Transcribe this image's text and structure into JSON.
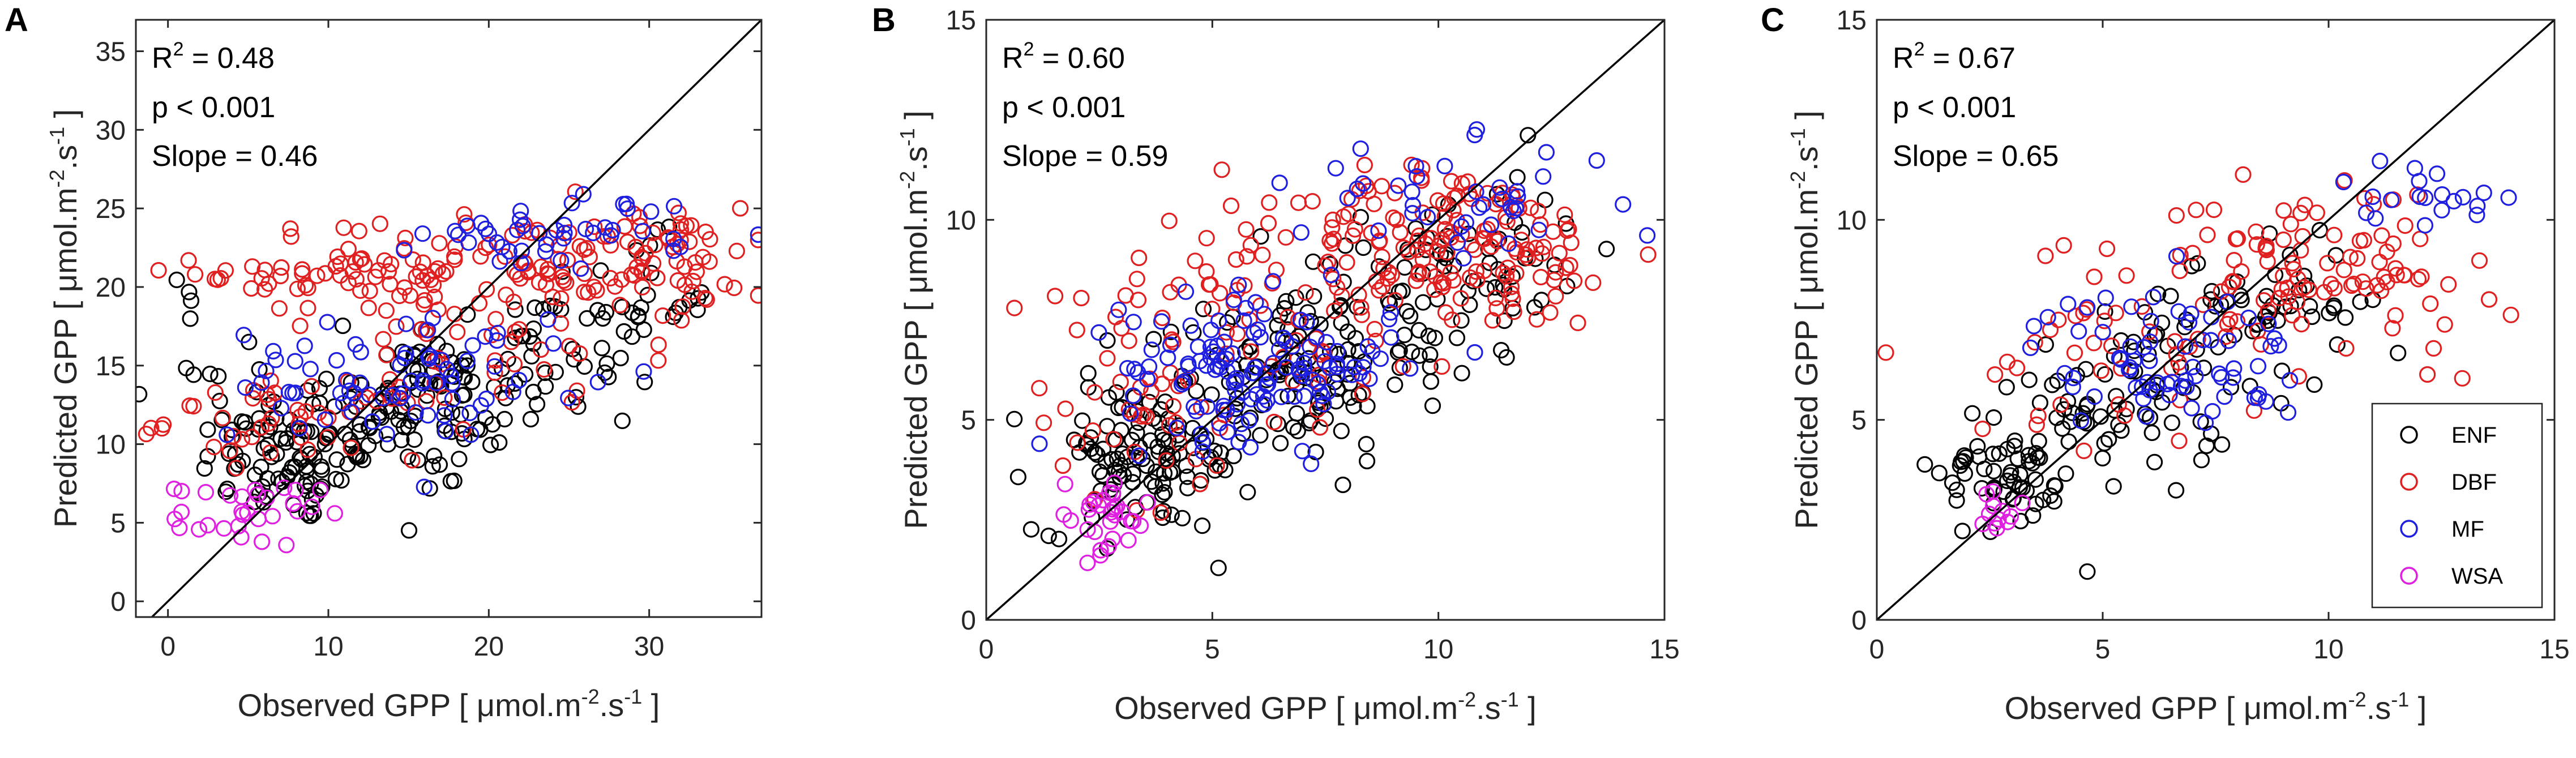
{
  "figure": {
    "legend": [
      {
        "label": "ENF",
        "color": "#000000"
      },
      {
        "label": "DBF",
        "color": "#e02020"
      },
      {
        "label": "MF",
        "color": "#1f1fe0"
      },
      {
        "label": "WSA",
        "color": "#e020e0"
      }
    ],
    "x_title": "Observed GPP [ μmol.m",
    "y_title": "Predicted GPP [ μmol.m",
    "unit_exp1": "-2",
    "unit_mid": ".s",
    "unit_exp2": "-1",
    "unit_end": "]"
  },
  "chart_data": [
    {
      "panel": "A",
      "type": "scatter",
      "xlim": [
        -2,
        37
      ],
      "ylim": [
        -1,
        37
      ],
      "xticks": [
        0,
        10,
        20,
        30
      ],
      "yticks": [
        0,
        5,
        10,
        15,
        20,
        25,
        30,
        35
      ],
      "stats": {
        "r2": "R",
        "r2_sup": "2",
        "r2_value": " = 0.48",
        "p": "p < 0.001",
        "slope": "Slope = 0.46"
      },
      "one_to_one": true,
      "series": [
        {
          "name": "ENF",
          "groups": [
            {
              "cx": 8,
              "cy": 8.5,
              "sx": 3.0,
              "sy": 1.8,
              "n": 70
            },
            {
              "cx": 14,
              "cy": 12,
              "sx": 5.0,
              "sy": 2.5,
              "n": 90
            },
            {
              "cx": 22,
              "cy": 15,
              "sx": 4.5,
              "sy": 2.5,
              "n": 60
            },
            {
              "cx": 29,
              "cy": 19,
              "sx": 2.5,
              "sy": 2.0,
              "n": 25
            },
            {
              "cx": 1.2,
              "cy": 19.5,
              "sx": 0.3,
              "sy": 0.8,
              "n": 4
            },
            {
              "cx": 3,
              "cy": 13,
              "sx": 1.5,
              "sy": 1.5,
              "n": 12
            }
          ]
        },
        {
          "name": "DBF",
          "groups": [
            {
              "cx": 12,
              "cy": 21,
              "sx": 5.0,
              "sy": 1.5,
              "n": 70
            },
            {
              "cx": 26,
              "cy": 21.5,
              "sx": 5.0,
              "sy": 1.8,
              "n": 90
            },
            {
              "cx": 8,
              "cy": 11.5,
              "sx": 4.0,
              "sy": 1.2,
              "n": 45
            },
            {
              "cx": 20,
              "cy": 16,
              "sx": 6.0,
              "sy": 3.0,
              "n": 40
            },
            {
              "cx": 32,
              "cy": 22,
              "sx": 1.8,
              "sy": 1.5,
              "n": 20
            }
          ]
        },
        {
          "name": "MF",
          "groups": [
            {
              "cx": 12,
              "cy": 14,
              "sx": 4.0,
              "sy": 1.8,
              "n": 50
            },
            {
              "cx": 25,
              "cy": 23.5,
              "sx": 4.5,
              "sy": 1.2,
              "n": 45
            },
            {
              "cx": 18,
              "cy": 15,
              "sx": 4.0,
              "sy": 2.0,
              "n": 25
            }
          ]
        },
        {
          "name": "WSA",
          "groups": [
            {
              "cx": 5,
              "cy": 5.5,
              "sx": 2.2,
              "sy": 1.0,
              "n": 30
            }
          ]
        }
      ]
    },
    {
      "panel": "B",
      "type": "scatter",
      "xlim": [
        0,
        15
      ],
      "ylim": [
        0,
        15
      ],
      "xticks": [
        0,
        5,
        10,
        15
      ],
      "yticks": [
        0,
        5,
        10,
        15
      ],
      "stats": {
        "r2": "R",
        "r2_sup": "2",
        "r2_value": " = 0.60",
        "p": "p < 0.001",
        "slope": "Slope = 0.59"
      },
      "one_to_one": true,
      "series": [
        {
          "name": "ENF",
          "groups": [
            {
              "cx": 3.5,
              "cy": 4.0,
              "sx": 1.2,
              "sy": 0.9,
              "n": 110
            },
            {
              "cx": 6.5,
              "cy": 6.0,
              "sx": 1.5,
              "sy": 1.0,
              "n": 90
            },
            {
              "cx": 9.5,
              "cy": 8.0,
              "sx": 1.5,
              "sy": 1.2,
              "n": 60
            },
            {
              "cx": 11.5,
              "cy": 9.5,
              "sx": 1.0,
              "sy": 1.0,
              "n": 25
            }
          ]
        },
        {
          "name": "DBF",
          "groups": [
            {
              "cx": 10.5,
              "cy": 9.3,
              "sx": 1.8,
              "sy": 1.0,
              "n": 140
            },
            {
              "cx": 6.5,
              "cy": 8.0,
              "sx": 2.2,
              "sy": 1.5,
              "n": 90
            },
            {
              "cx": 3.5,
              "cy": 5.0,
              "sx": 1.3,
              "sy": 1.0,
              "n": 30
            }
          ]
        },
        {
          "name": "MF",
          "groups": [
            {
              "cx": 6.0,
              "cy": 6.3,
              "sx": 1.5,
              "sy": 0.9,
              "n": 130
            },
            {
              "cx": 10.5,
              "cy": 10.5,
              "sx": 1.8,
              "sy": 0.7,
              "n": 40
            }
          ]
        },
        {
          "name": "WSA",
          "groups": [
            {
              "cx": 2.5,
              "cy": 2.6,
              "sx": 0.6,
              "sy": 0.5,
              "n": 30
            }
          ]
        }
      ]
    },
    {
      "panel": "C",
      "type": "scatter",
      "xlim": [
        0,
        15
      ],
      "ylim": [
        0,
        15
      ],
      "xticks": [
        0,
        5,
        10,
        15
      ],
      "yticks": [
        0,
        5,
        10,
        15
      ],
      "stats": {
        "r2": "R",
        "r2_sup": "2",
        "r2_value": " = 0.67",
        "p": "p < 0.001",
        "slope": "Slope = 0.65"
      },
      "one_to_one": true,
      "legend_position": "bottom-right",
      "series": [
        {
          "name": "ENF",
          "groups": [
            {
              "cx": 3.0,
              "cy": 3.8,
              "sx": 0.8,
              "sy": 0.9,
              "n": 60
            },
            {
              "cx": 5.5,
              "cy": 5.5,
              "sx": 1.2,
              "sy": 1.0,
              "n": 60
            },
            {
              "cx": 8.0,
              "cy": 7.5,
              "sx": 1.2,
              "sy": 0.9,
              "n": 40
            },
            {
              "cx": 10.5,
              "cy": 8.0,
              "sx": 0.7,
              "sy": 0.8,
              "n": 12
            }
          ]
        },
        {
          "name": "DBF",
          "groups": [
            {
              "cx": 9.5,
              "cy": 9.0,
              "sx": 1.5,
              "sy": 0.9,
              "n": 70
            },
            {
              "cx": 5.5,
              "cy": 7.0,
              "sx": 1.8,
              "sy": 1.3,
              "n": 50
            },
            {
              "cx": 11.5,
              "cy": 8.5,
              "sx": 1.0,
              "sy": 1.0,
              "n": 20
            }
          ]
        },
        {
          "name": "MF",
          "groups": [
            {
              "cx": 6.5,
              "cy": 6.5,
              "sx": 1.5,
              "sy": 0.9,
              "n": 70
            },
            {
              "cx": 12.0,
              "cy": 10.8,
              "sx": 0.9,
              "sy": 0.4,
              "n": 20
            }
          ]
        },
        {
          "name": "WSA",
          "groups": [
            {
              "cx": 2.6,
              "cy": 2.6,
              "sx": 0.4,
              "sy": 0.4,
              "n": 12
            }
          ]
        }
      ]
    }
  ]
}
